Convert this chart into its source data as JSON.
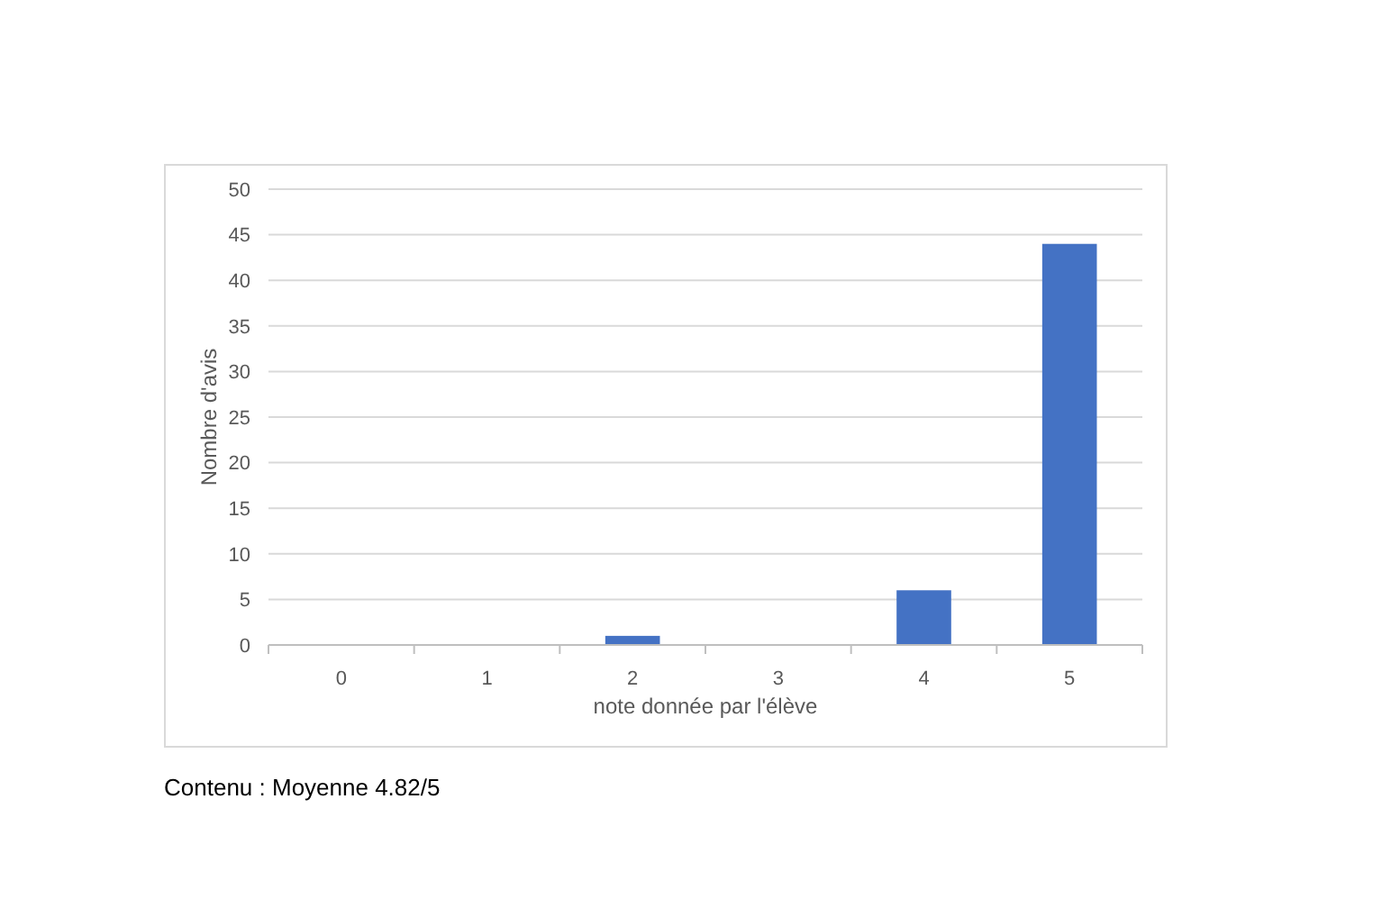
{
  "chart_data": {
    "type": "bar",
    "xlabel": "note donnée par l'élève",
    "ylabel": "Nombre d'avis",
    "categories": [
      "0",
      "1",
      "2",
      "3",
      "4",
      "5"
    ],
    "values": [
      0,
      0,
      1,
      0,
      6,
      44
    ],
    "color": "#4472c4",
    "ylim": [
      0,
      50
    ],
    "yticks": [
      0,
      5,
      10,
      15,
      20,
      25,
      30,
      35,
      40,
      45,
      50
    ],
    "grid": "y",
    "annotations": [
      "Contenu : Moyenne 4.82/5"
    ]
  }
}
